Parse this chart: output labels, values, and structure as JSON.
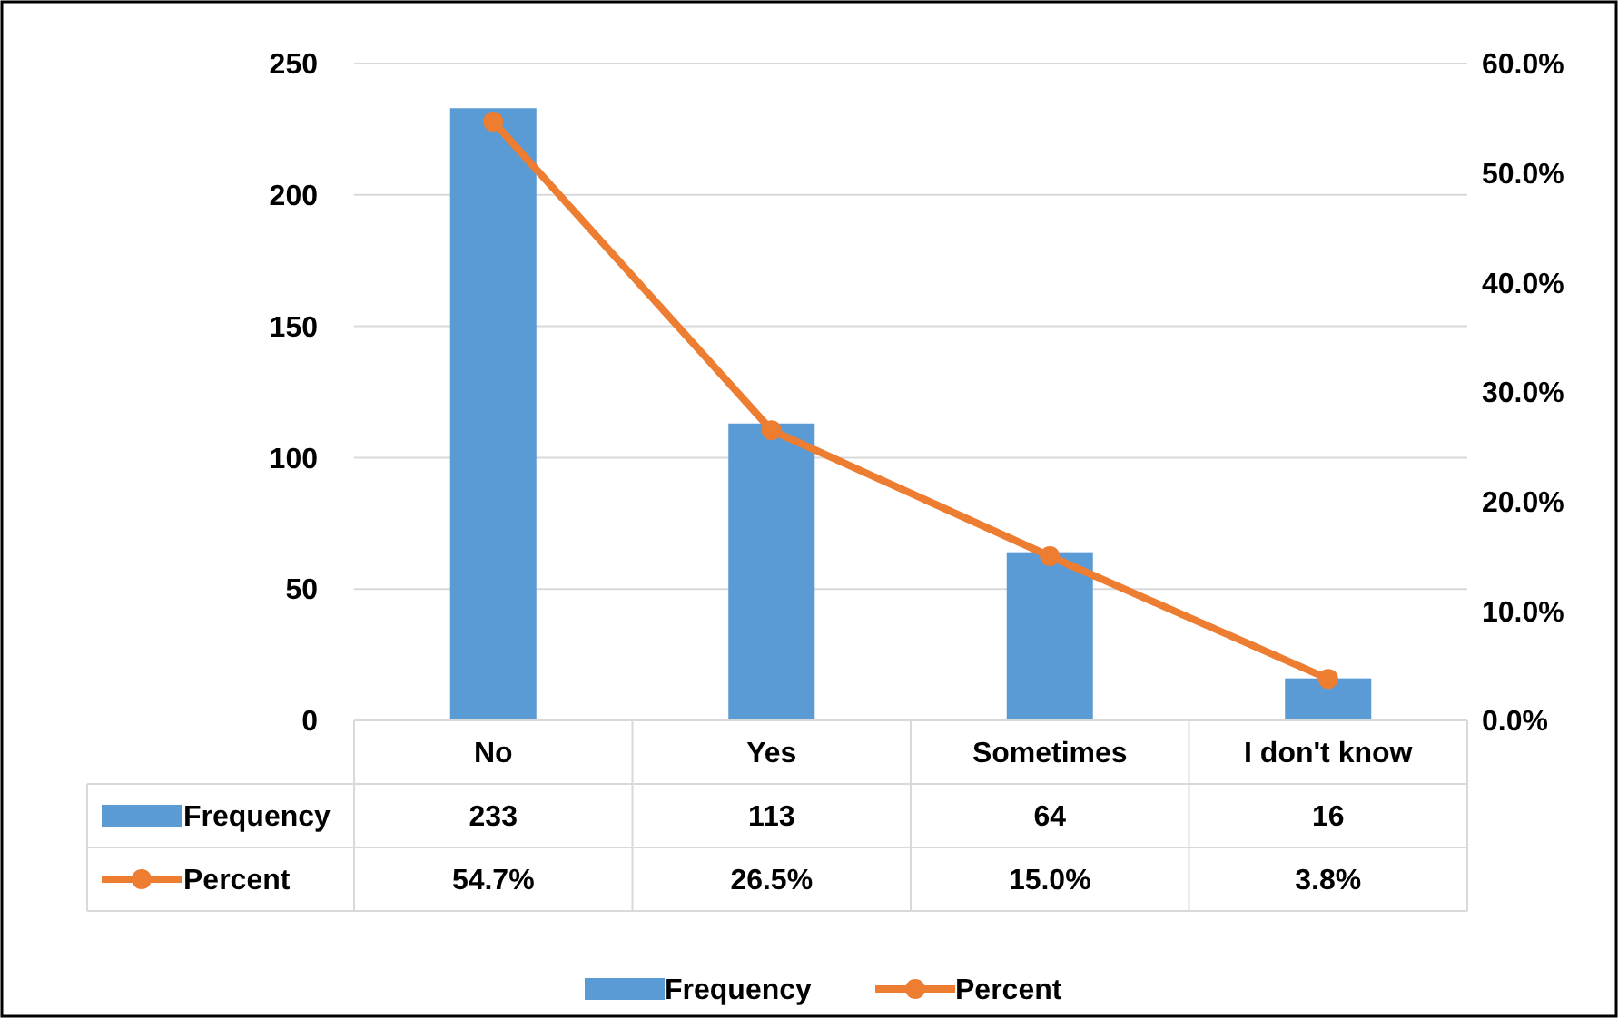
{
  "chart_data": {
    "type": "bar",
    "categories": [
      "No",
      "Yes",
      "Sometimes",
      "I don't know"
    ],
    "series": [
      {
        "name": "Frequency",
        "color": "#5b9bd5",
        "values": [
          233,
          113,
          64,
          16
        ],
        "value_labels": [
          "233",
          "113",
          "64",
          "16"
        ]
      },
      {
        "name": "Percent",
        "type": "line",
        "axis": "y2",
        "color": "#ed7d31",
        "values": [
          54.7,
          26.5,
          15.0,
          3.8
        ],
        "value_labels": [
          "54.7%",
          "26.5%",
          "15.0%",
          "3.8%"
        ]
      }
    ],
    "ylim": [
      0,
      250
    ],
    "yticks": [
      0,
      50,
      100,
      150,
      200,
      250
    ],
    "y2lim": [
      0,
      60
    ],
    "y2ticks": [
      {
        "value": 0,
        "label": "0.0%"
      },
      {
        "value": 10,
        "label": "10.0%"
      },
      {
        "value": 20,
        "label": "20.0%"
      },
      {
        "value": 30,
        "label": "30.0%"
      },
      {
        "value": 40,
        "label": "40.0%"
      },
      {
        "value": 50,
        "label": "50.0%"
      },
      {
        "value": 60,
        "label": "60.0%"
      }
    ],
    "grid": "y",
    "legend": "bottom",
    "marker": "circle"
  }
}
